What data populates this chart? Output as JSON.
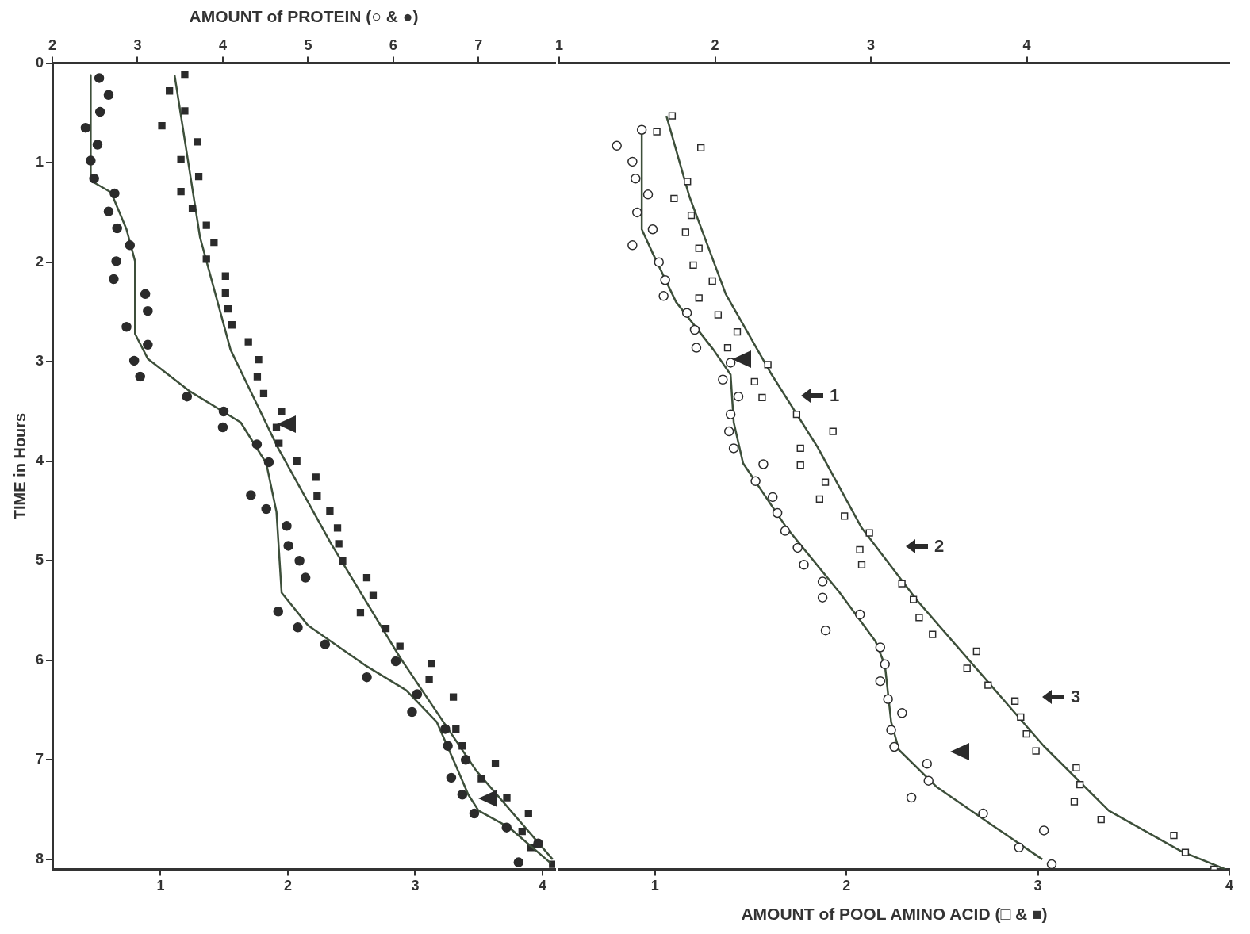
{
  "chart_data": [
    {
      "type": "scatter",
      "ylabel": "TIME in Hours",
      "x2label": "AMOUNT of PROTEIN (○ & ●)",
      "ylim": [
        8.1,
        0
      ],
      "yticks": [
        0,
        1,
        2,
        3,
        4,
        5,
        6,
        7,
        8
      ],
      "xlim": [
        0.15,
        4.1
      ],
      "xticks": [
        1,
        2,
        3,
        4
      ],
      "x2lim": [
        2,
        7.9
      ],
      "x2ticks": [
        2,
        3,
        4,
        5,
        6,
        7
      ],
      "grid": false,
      "legend": false,
      "series": [
        {
          "type": "scatter",
          "axis": "x2",
          "marker": "circle",
          "color": "#2b2b2b",
          "x": [
            2.55,
            2.66,
            2.56,
            2.39,
            2.53,
            2.45,
            2.49,
            2.73,
            2.66,
            2.76,
            2.91,
            2.75,
            2.72,
            3.09,
            3.12,
            2.87,
            3.12,
            2.96,
            3.03,
            3.58,
            4.01,
            4.0,
            4.4,
            4.54,
            4.33,
            4.51,
            4.75,
            4.77,
            4.9,
            4.97,
            4.65,
            4.88,
            5.2,
            6.03,
            5.69,
            6.28,
            6.22,
            6.61,
            6.64,
            6.85,
            6.68,
            6.81,
            6.95,
            7.33,
            7.7,
            7.47
          ],
          "values": [
            0.15,
            0.32,
            0.49,
            0.65,
            0.82,
            0.98,
            1.16,
            1.31,
            1.49,
            1.66,
            1.83,
            1.99,
            2.17,
            2.32,
            2.49,
            2.65,
            2.83,
            2.99,
            3.15,
            3.35,
            3.5,
            3.66,
            3.83,
            4.01,
            4.34,
            4.48,
            4.65,
            4.85,
            5.0,
            5.17,
            5.51,
            5.67,
            5.84,
            6.01,
            6.17,
            6.34,
            6.52,
            6.69,
            6.86,
            7.0,
            7.18,
            7.35,
            7.54,
            7.68,
            7.84,
            8.03
          ]
        },
        {
          "type": "line",
          "axis": "x2",
          "marker": "none",
          "color": "#3d4f3a",
          "x": [
            2.45,
            2.45,
            2.69,
            2.87,
            2.97,
            2.97,
            3.12,
            3.6,
            4.21,
            4.51,
            4.63,
            4.69,
            5.0,
            5.67,
            6.15,
            6.51,
            6.76,
            6.88,
            7.0,
            7.36,
            7.85
          ],
          "values": [
            0.12,
            1.18,
            1.3,
            1.67,
            1.99,
            2.72,
            2.97,
            3.29,
            3.61,
            4.02,
            4.51,
            5.32,
            5.65,
            6.05,
            6.3,
            6.62,
            7.11,
            7.35,
            7.51,
            7.68,
            8.04
          ]
        },
        {
          "type": "scatter",
          "marker": "square",
          "color": "#2b2b2b",
          "x": [
            1.19,
            1.07,
            1.19,
            1.01,
            1.29,
            1.16,
            1.3,
            1.16,
            1.25,
            1.36,
            1.42,
            1.36,
            1.51,
            1.51,
            1.53,
            1.56,
            1.69,
            1.77,
            1.76,
            1.81,
            1.95,
            1.91,
            1.93,
            2.07,
            2.22,
            2.23,
            2.33,
            2.39,
            2.4,
            2.43,
            2.62,
            2.67,
            2.57,
            2.77,
            2.88,
            3.13,
            3.11,
            3.3,
            3.32,
            3.37,
            3.63,
            3.52,
            3.72,
            3.89,
            3.84,
            3.91,
            4.08
          ],
          "values": [
            0.12,
            0.28,
            0.48,
            0.63,
            0.79,
            0.97,
            1.14,
            1.29,
            1.46,
            1.63,
            1.8,
            1.97,
            2.14,
            2.31,
            2.47,
            2.63,
            2.8,
            2.98,
            3.15,
            3.32,
            3.5,
            3.66,
            3.82,
            4.0,
            4.16,
            4.35,
            4.5,
            4.67,
            4.83,
            5.0,
            5.17,
            5.35,
            5.52,
            5.68,
            5.86,
            6.03,
            6.19,
            6.37,
            6.69,
            6.86,
            7.04,
            7.19,
            7.38,
            7.54,
            7.72,
            7.88,
            8.05
          ]
        },
        {
          "type": "line",
          "marker": "none",
          "color": "#3d4f3a",
          "x": [
            1.11,
            1.31,
            1.55,
            1.92,
            2.34,
            2.88,
            3.48,
            4.08
          ],
          "values": [
            0.12,
            1.75,
            2.88,
            3.86,
            4.83,
            5.97,
            7.11,
            8.0
          ]
        }
      ]
    },
    {
      "type": "scatter",
      "xlabel": "AMOUNT of POOL AMINO ACID (□ & ■)",
      "ylim": [
        8.1,
        0
      ],
      "tick_labels": "x",
      "xlim": [
        0.5,
        4.0
      ],
      "xticks": [
        1,
        2,
        3,
        4
      ],
      "x2lim": [
        1,
        5.3
      ],
      "x2ticks": [
        1,
        2,
        3,
        4
      ],
      "grid": false,
      "legend": false,
      "series": [
        {
          "type": "scatter",
          "axis": "x2",
          "marker": "circle",
          "color": "#2b2b2b",
          "x": [
            1.53,
            1.37,
            1.47,
            1.49,
            1.57,
            1.5,
            1.6,
            1.47,
            1.64,
            1.68,
            1.67,
            1.82,
            1.87,
            1.88,
            2.1,
            2.05,
            2.15,
            2.1,
            2.09,
            2.12,
            2.31,
            2.26,
            2.37,
            2.4,
            2.45,
            2.53,
            2.57,
            2.69,
            2.69,
            2.71,
            2.93,
            3.06,
            3.09,
            3.06,
            3.11,
            3.2,
            3.13,
            3.15,
            3.36,
            3.37,
            3.26,
            3.72,
            4.11,
            3.95,
            4.16
          ],
          "values": [
            0.67,
            0.83,
            0.99,
            1.16,
            1.32,
            1.5,
            1.67,
            1.83,
            2.0,
            2.18,
            2.34,
            2.51,
            2.68,
            2.86,
            3.01,
            3.18,
            3.35,
            3.53,
            3.7,
            3.87,
            4.03,
            4.2,
            4.36,
            4.52,
            4.7,
            4.87,
            5.04,
            5.21,
            5.37,
            5.7,
            5.54,
            5.87,
            6.04,
            6.21,
            6.39,
            6.53,
            6.7,
            6.87,
            7.04,
            7.21,
            7.38,
            7.54,
            7.71,
            7.88,
            8.05
          ]
        },
        {
          "type": "line",
          "axis": "x2",
          "marker": "none",
          "color": "#3d4f3a",
          "x": [
            1.53,
            1.53,
            1.6,
            1.75,
            1.99,
            2.1,
            2.12,
            2.18,
            2.46,
            2.8,
            3.03,
            3.09,
            3.13,
            3.18,
            3.42,
            3.8,
            4.1
          ],
          "values": [
            0.67,
            1.67,
            1.91,
            2.4,
            2.88,
            3.13,
            3.61,
            4.02,
            4.67,
            5.32,
            5.81,
            6.05,
            6.62,
            6.9,
            7.27,
            7.68,
            8.0
          ]
        },
        {
          "type": "scatter",
          "marker": "square",
          "color": "#2b2b2b",
          "x": [
            1.09,
            1.01,
            1.24,
            1.17,
            1.1,
            1.19,
            1.16,
            1.23,
            1.2,
            1.3,
            1.23,
            1.33,
            1.43,
            1.38,
            1.59,
            1.52,
            1.56,
            1.74,
            1.93,
            1.76,
            1.76,
            1.89,
            1.86,
            1.99,
            2.12,
            2.07,
            2.08,
            2.29,
            2.35,
            2.38,
            2.45,
            2.68,
            2.63,
            2.74,
            2.88,
            2.91,
            2.94,
            2.99,
            3.2,
            3.22,
            3.19,
            3.33,
            3.71,
            3.77,
            3.92
          ],
          "values": [
            0.53,
            0.69,
            0.85,
            1.19,
            1.36,
            1.53,
            1.7,
            1.86,
            2.03,
            2.19,
            2.36,
            2.53,
            2.7,
            2.86,
            3.03,
            3.2,
            3.36,
            3.53,
            3.7,
            3.87,
            4.04,
            4.21,
            4.38,
            4.55,
            4.72,
            4.89,
            5.04,
            5.23,
            5.39,
            5.57,
            5.74,
            5.91,
            6.08,
            6.25,
            6.41,
            6.57,
            6.74,
            6.91,
            7.08,
            7.25,
            7.42,
            7.6,
            7.76,
            7.93,
            8.1
          ]
        },
        {
          "type": "line",
          "marker": "none",
          "color": "#3d4f3a",
          "x": [
            1.06,
            1.18,
            1.37,
            1.61,
            1.85,
            2.08,
            2.37,
            2.7,
            3.03,
            3.37,
            3.75,
            3.98
          ],
          "values": [
            0.53,
            1.34,
            2.32,
            3.13,
            3.86,
            4.67,
            5.4,
            6.13,
            6.86,
            7.51,
            7.92,
            8.1
          ]
        }
      ],
      "annotations": [
        "1",
        "2",
        "3"
      ]
    }
  ]
}
